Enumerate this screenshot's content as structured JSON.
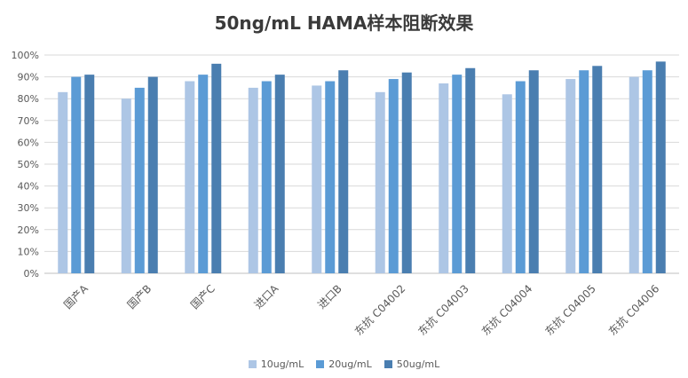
{
  "chart_data": {
    "type": "bar",
    "title": "50ng/mL HAMA样本阻断效果",
    "xlabel": "",
    "ylabel": "",
    "ylim": [
      0,
      100
    ],
    "yticks": [
      "0%",
      "10%",
      "20%",
      "30%",
      "40%",
      "50%",
      "60%",
      "70%",
      "80%",
      "90%",
      "100%"
    ],
    "grid": true,
    "legend_position": "bottom",
    "categories": [
      "国产A",
      "国产B",
      "国产C",
      "进口A",
      "进口B",
      "东抗 C04002",
      "东抗 C04003",
      "东抗 C04004",
      "东抗 C04005",
      "东抗 C04006"
    ],
    "series": [
      {
        "name": "10ug/mL",
        "color": "#adc6e5",
        "values": [
          83,
          80,
          88,
          85,
          86,
          83,
          87,
          82,
          89,
          90
        ]
      },
      {
        "name": "20ug/mL",
        "color": "#5b9bd5",
        "values": [
          90,
          85,
          91,
          88,
          88,
          89,
          91,
          88,
          93,
          93
        ]
      },
      {
        "name": "50ug/mL",
        "color": "#4a7eb0",
        "values": [
          91,
          90,
          96,
          91,
          93,
          92,
          94,
          93,
          95,
          97
        ]
      }
    ]
  }
}
